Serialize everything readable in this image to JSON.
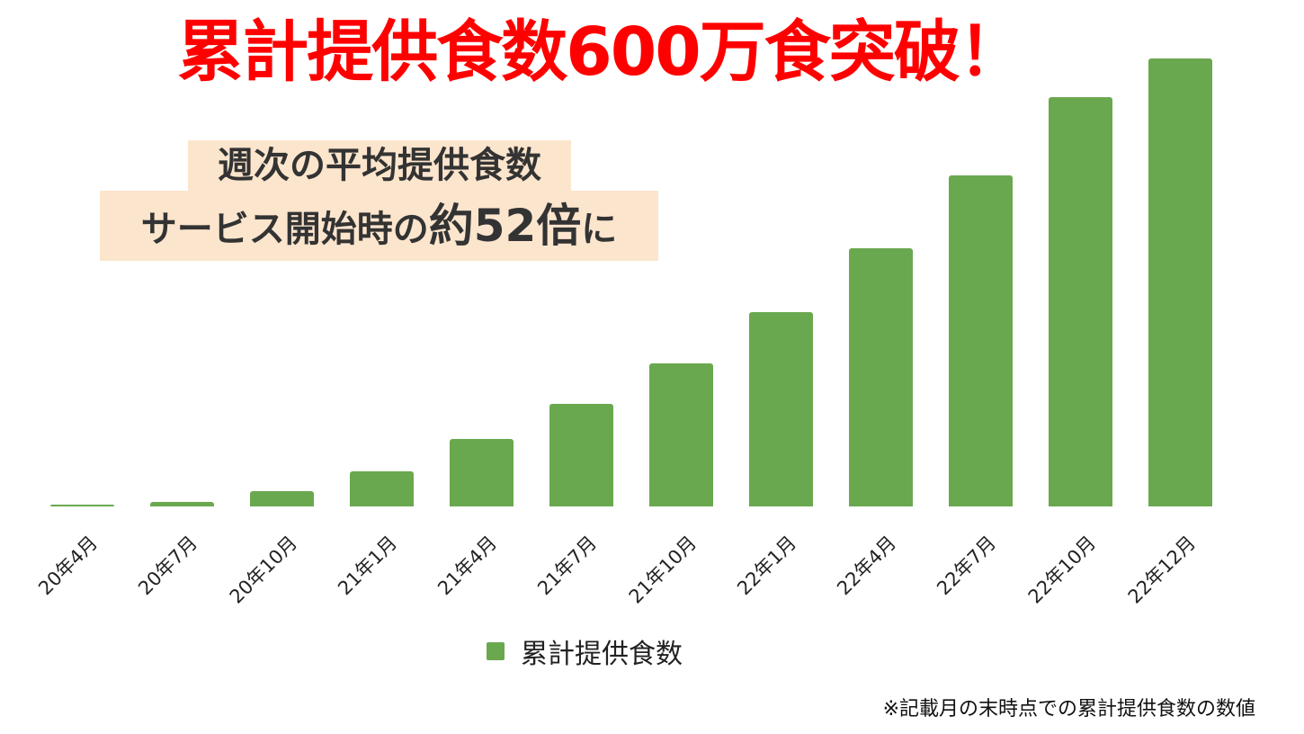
{
  "headline": "累計提供食数600万食突破！",
  "callout": {
    "line1": "週次の平均提供食数",
    "line2_prefix": "サービス開始時の",
    "line2_emphasis": "約52倍",
    "line2_suffix": "に"
  },
  "legend": {
    "label": "累計提供食数",
    "color": "#6aa84f"
  },
  "footnote": "※記載月の末時点での累計提供食数の数値",
  "colors": {
    "headline": "#ff0000",
    "callout_bg": "#fce5cd",
    "callout_text": "#333333",
    "bar": "#6aa84f"
  },
  "chart_data": {
    "type": "bar",
    "title": "累計提供食数600万食突破！",
    "xlabel": "",
    "ylabel": "累計提供食数",
    "categories": [
      "20年4月",
      "20年7月",
      "20年10月",
      "21年1月",
      "21年4月",
      "21年7月",
      "21年10月",
      "22年1月",
      "22年4月",
      "22年7月",
      "22年10月",
      "22年12月"
    ],
    "series": [
      {
        "name": "累計提供食数",
        "color": "#6aa84f",
        "values": [
          24000,
          60000,
          205000,
          470000,
          904000,
          1373000,
          1916000,
          2602000,
          3458000,
          4434000,
          5482000,
          6000000
        ]
      }
    ],
    "ylim": [
      0,
      6000000
    ],
    "grid": false,
    "y_axis_visible": false,
    "legend_position": "bottom",
    "annotations": [
      "週次の平均提供食数 サービス開始時の約52倍に",
      "※記載月の末時点での累計提供食数の数値"
    ]
  }
}
